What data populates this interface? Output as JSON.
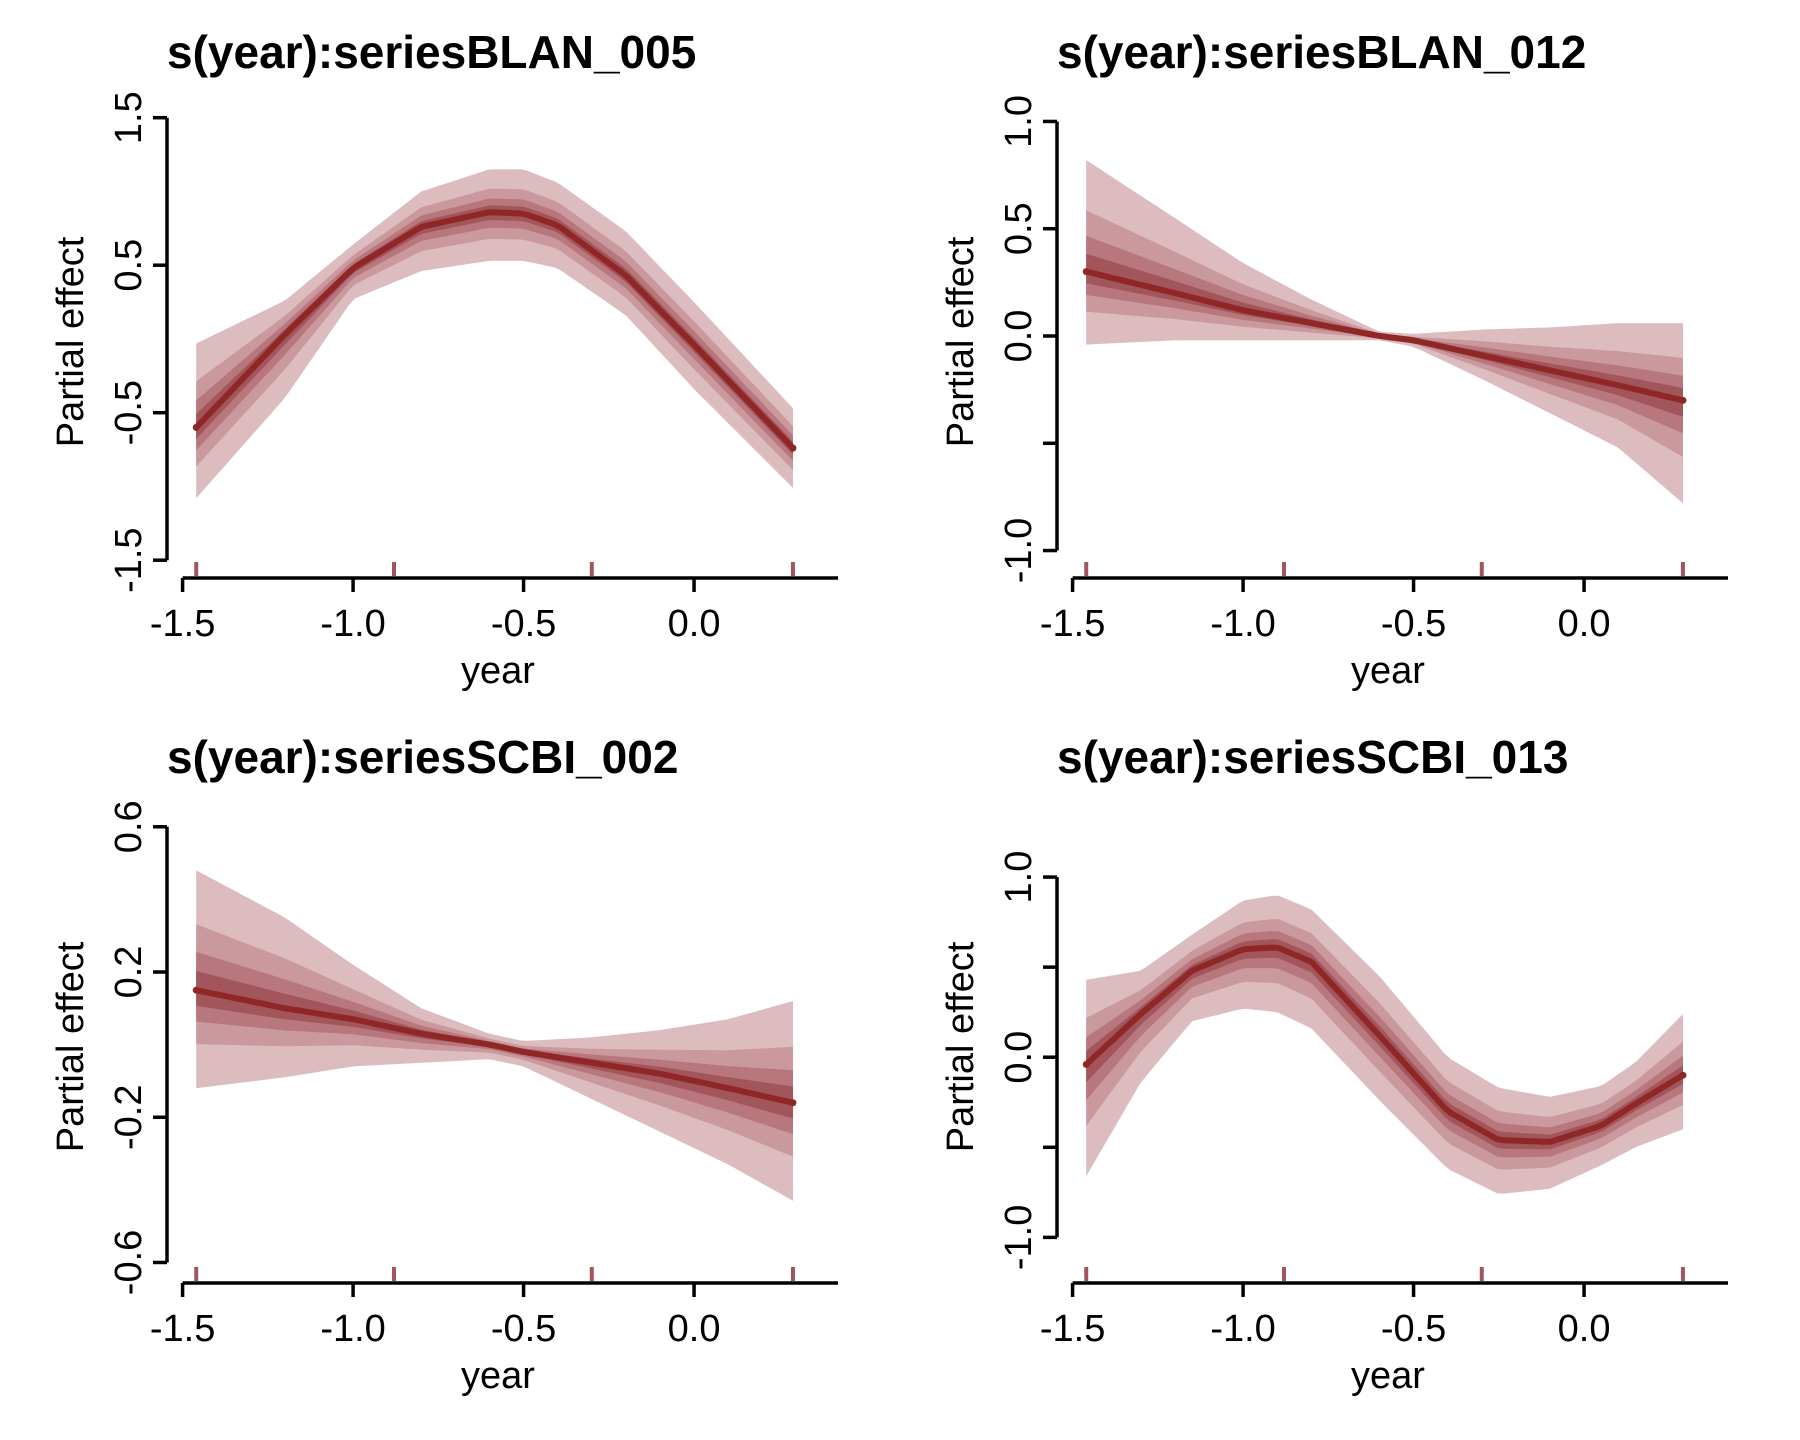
{
  "colors": {
    "band_outer": "#DCBCBF",
    "band_2": "#C9999D",
    "band_3": "#B7777D",
    "band_inner": "#A3555C",
    "line": "#8F2727",
    "rug": "#A3555C",
    "axis": "#000000"
  },
  "chart_data": [
    {
      "type": "area",
      "title": "s(year):seriesBLAN_005",
      "xlabel": "year",
      "ylabel": "Partial effect",
      "xlim": [
        -1.49,
        0.34
      ],
      "ylim": [
        -1.58,
        1.62
      ],
      "xticks": [
        -1.5,
        -1.0,
        -0.5,
        0.0
      ],
      "xticklabels": [
        "-1.5",
        "-1.0",
        "-0.5",
        "0.0"
      ],
      "yticks": [
        -1.5,
        -0.5,
        0.5,
        1.5
      ],
      "yticklabels": [
        "-1.5",
        "-0.5",
        "0.5",
        "1.5"
      ],
      "rug": [
        -1.46,
        -0.88,
        -0.3,
        0.29
      ],
      "x": [
        -1.46,
        -1.2,
        -1.0,
        -0.8,
        -0.6,
        -0.5,
        -0.4,
        -0.2,
        0.0,
        0.29
      ],
      "series": [
        {
          "values": [
            -0.6,
            0.03,
            0.48,
            0.76,
            0.86,
            0.85,
            0.77,
            0.43,
            -0.04,
            -0.74
          ]
        },
        {
          "values": [
            -1.08,
            -0.4,
            0.27,
            0.46,
            0.53,
            0.53,
            0.48,
            0.16,
            -0.34,
            -1.01
          ]
        },
        {
          "values": [
            -0.03,
            0.26,
            0.64,
            1.0,
            1.15,
            1.15,
            1.06,
            0.73,
            0.25,
            -0.47
          ]
        }
      ]
    },
    {
      "type": "area",
      "title": "s(year):seriesBLAN_012",
      "xlabel": "year",
      "ylabel": "Partial effect",
      "xlim": [
        -1.49,
        0.34
      ],
      "ylim": [
        -1.1,
        1.1
      ],
      "xticks": [
        -1.5,
        -1.0,
        -0.5,
        0.0
      ],
      "xticklabels": [
        "-1.5",
        "-1.0",
        "-0.5",
        "0.0"
      ],
      "yticks": [
        -1.0,
        -0.5,
        0.0,
        0.5,
        1.0
      ],
      "yticklabels": [
        "-1.0",
        "",
        "0.0",
        "0.5",
        "1.0"
      ],
      "rug": [
        -1.46,
        -0.88,
        -0.3,
        0.29
      ],
      "x": [
        -1.46,
        -1.2,
        -1.0,
        -0.8,
        -0.6,
        -0.5,
        -0.3,
        -0.1,
        0.1,
        0.29
      ],
      "series": [
        {
          "values": [
            0.3,
            0.2,
            0.12,
            0.06,
            0.0,
            -0.02,
            -0.09,
            -0.16,
            -0.23,
            -0.3
          ]
        },
        {
          "values": [
            -0.04,
            -0.02,
            -0.02,
            -0.02,
            -0.02,
            -0.05,
            -0.2,
            -0.36,
            -0.52,
            -0.78
          ]
        },
        {
          "values": [
            0.82,
            0.55,
            0.34,
            0.17,
            0.02,
            0.01,
            0.03,
            0.04,
            0.06,
            0.06
          ]
        }
      ]
    },
    {
      "type": "area",
      "title": "s(year):seriesSCBI_002",
      "xlabel": "year",
      "ylabel": "Partial effect",
      "xlim": [
        -1.49,
        0.34
      ],
      "ylim": [
        -0.64,
        0.66
      ],
      "xticks": [
        -1.5,
        -1.0,
        -0.5,
        0.0
      ],
      "xticklabels": [
        "-1.5",
        "-1.0",
        "-0.5",
        "0.0"
      ],
      "yticks": [
        -0.6,
        -0.2,
        0.2,
        0.6
      ],
      "yticklabels": [
        "-0.6",
        "-0.2",
        "0.2",
        "0.6"
      ],
      "rug": [
        -1.46,
        -0.88,
        -0.3,
        0.29
      ],
      "x": [
        -1.46,
        -1.2,
        -1.0,
        -0.8,
        -0.6,
        -0.5,
        -0.3,
        -0.1,
        0.1,
        0.29
      ],
      "series": [
        {
          "values": [
            0.15,
            0.1,
            0.07,
            0.03,
            0.0,
            -0.02,
            -0.05,
            -0.08,
            -0.12,
            -0.16
          ]
        },
        {
          "values": [
            -0.12,
            -0.09,
            -0.06,
            -0.05,
            -0.04,
            -0.06,
            -0.15,
            -0.24,
            -0.33,
            -0.43
          ]
        },
        {
          "values": [
            0.48,
            0.35,
            0.22,
            0.1,
            0.03,
            0.01,
            0.02,
            0.04,
            0.07,
            0.12
          ]
        }
      ]
    },
    {
      "type": "area",
      "title": "s(year):seriesSCBI_013",
      "xlabel": "year",
      "ylabel": "Partial effect",
      "xlim": [
        -1.49,
        0.34
      ],
      "ylim": [
        -1.22,
        1.4
      ],
      "xticks": [
        -1.5,
        -1.0,
        -0.5,
        0.0
      ],
      "xticklabels": [
        "-1.5",
        "-1.0",
        "-0.5",
        "0.0"
      ],
      "yticks": [
        -1.0,
        -0.5,
        0.0,
        0.5,
        1.0
      ],
      "yticklabels": [
        "-1.0",
        "",
        "0.0",
        "",
        "1.0"
      ],
      "rug": [
        -1.46,
        -0.88,
        -0.3,
        0.29
      ],
      "x": [
        -1.46,
        -1.3,
        -1.15,
        -1.0,
        -0.9,
        -0.8,
        -0.6,
        -0.4,
        -0.25,
        -0.1,
        0.05,
        0.15,
        0.29
      ],
      "series": [
        {
          "values": [
            -0.04,
            0.24,
            0.48,
            0.6,
            0.61,
            0.53,
            0.12,
            -0.3,
            -0.46,
            -0.47,
            -0.38,
            -0.26,
            -0.1
          ]
        },
        {
          "values": [
            -0.66,
            -0.14,
            0.2,
            0.27,
            0.25,
            0.16,
            -0.24,
            -0.62,
            -0.76,
            -0.73,
            -0.6,
            -0.5,
            -0.4
          ]
        },
        {
          "values": [
            0.43,
            0.48,
            0.68,
            0.87,
            0.9,
            0.82,
            0.45,
            0.0,
            -0.17,
            -0.22,
            -0.16,
            -0.03,
            0.24
          ]
        }
      ]
    }
  ]
}
